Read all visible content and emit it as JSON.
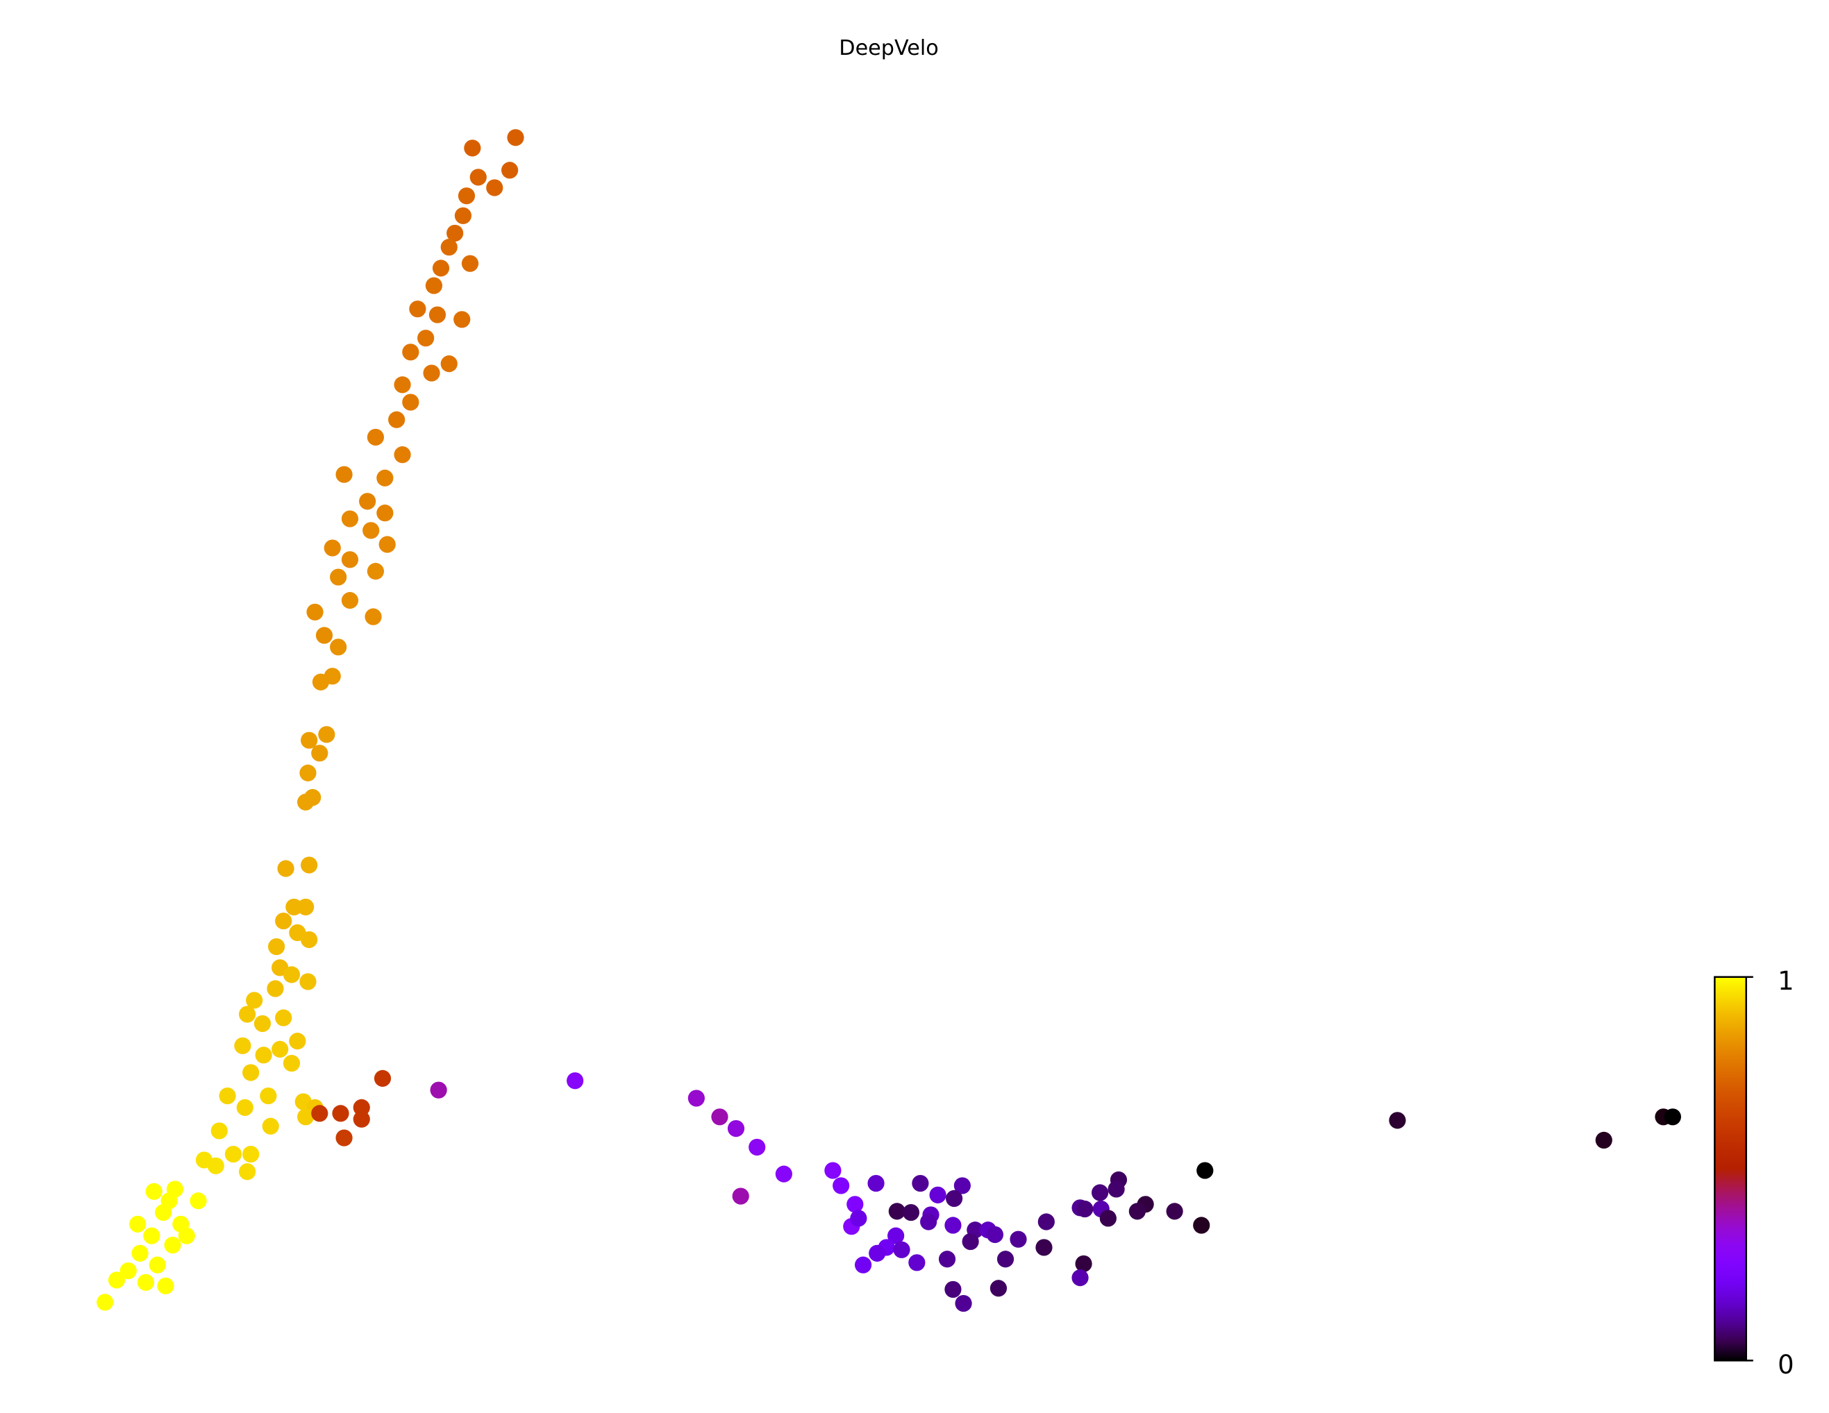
{
  "chart_data": {
    "type": "scatter",
    "title": "DeepVelo",
    "xlabel": "",
    "ylabel": "",
    "xlim": [
      0,
      156.8
    ],
    "ylim": [
      0,
      121.2
    ],
    "grid": false,
    "axes_visible": false,
    "colormap": "gnuplot",
    "colorbar": {
      "min": 0,
      "max": 1,
      "tick_labels": [
        "0",
        "1"
      ],
      "placement": "bottom-right"
    },
    "points": [
      [
        44.2,
        109.4,
        0.72
      ],
      [
        40.5,
        108.5,
        0.72
      ],
      [
        43.7,
        106.6,
        0.72
      ],
      [
        42.4,
        105.1,
        0.73
      ],
      [
        41.0,
        106.0,
        0.73
      ],
      [
        40.0,
        104.4,
        0.74
      ],
      [
        39.7,
        102.7,
        0.74
      ],
      [
        39.0,
        101.2,
        0.74
      ],
      [
        38.5,
        100.0,
        0.75
      ],
      [
        40.3,
        98.6,
        0.75
      ],
      [
        37.8,
        98.2,
        0.75
      ],
      [
        37.2,
        96.7,
        0.76
      ],
      [
        35.8,
        94.7,
        0.76
      ],
      [
        37.5,
        94.2,
        0.76
      ],
      [
        39.6,
        93.8,
        0.76
      ],
      [
        36.5,
        92.2,
        0.77
      ],
      [
        35.2,
        91.0,
        0.77
      ],
      [
        38.5,
        90.0,
        0.77
      ],
      [
        37.0,
        89.2,
        0.77
      ],
      [
        34.5,
        88.2,
        0.78
      ],
      [
        35.2,
        86.7,
        0.78
      ],
      [
        34.0,
        85.2,
        0.78
      ],
      [
        32.2,
        83.7,
        0.79
      ],
      [
        34.5,
        82.2,
        0.79
      ],
      [
        29.5,
        80.5,
        0.8
      ],
      [
        33.0,
        80.2,
        0.8
      ],
      [
        31.5,
        78.2,
        0.8
      ],
      [
        30.0,
        76.7,
        0.81
      ],
      [
        33.0,
        77.2,
        0.8
      ],
      [
        31.8,
        75.7,
        0.81
      ],
      [
        28.5,
        74.2,
        0.81
      ],
      [
        33.2,
        74.5,
        0.81
      ],
      [
        30.0,
        73.2,
        0.81
      ],
      [
        29.0,
        71.7,
        0.82
      ],
      [
        32.2,
        72.2,
        0.82
      ],
      [
        27.0,
        68.7,
        0.82
      ],
      [
        30.0,
        69.7,
        0.82
      ],
      [
        32.0,
        68.3,
        0.82
      ],
      [
        27.8,
        66.7,
        0.82
      ],
      [
        29.0,
        65.7,
        0.83
      ],
      [
        28.5,
        63.2,
        0.84
      ],
      [
        27.5,
        62.7,
        0.84
      ],
      [
        28.0,
        58.2,
        0.85
      ],
      [
        26.5,
        57.7,
        0.85
      ],
      [
        27.4,
        56.6,
        0.85
      ],
      [
        26.4,
        54.9,
        0.86
      ],
      [
        26.8,
        52.8,
        0.86
      ],
      [
        26.2,
        52.4,
        0.86
      ],
      [
        24.5,
        46.7,
        0.88
      ],
      [
        26.5,
        47.0,
        0.88
      ],
      [
        25.2,
        43.4,
        0.89
      ],
      [
        26.2,
        43.4,
        0.89
      ],
      [
        24.3,
        42.2,
        0.89
      ],
      [
        25.5,
        41.2,
        0.9
      ],
      [
        23.7,
        40.0,
        0.9
      ],
      [
        26.5,
        40.6,
        0.9
      ],
      [
        24.0,
        38.2,
        0.9
      ],
      [
        25.0,
        37.6,
        0.91
      ],
      [
        26.4,
        37.0,
        0.91
      ],
      [
        23.6,
        36.4,
        0.91
      ],
      [
        21.8,
        35.4,
        0.92
      ],
      [
        24.3,
        33.9,
        0.92
      ],
      [
        21.2,
        34.2,
        0.92
      ],
      [
        22.5,
        33.4,
        0.92
      ],
      [
        25.5,
        31.9,
        0.92
      ],
      [
        20.8,
        31.5,
        0.93
      ],
      [
        24.0,
        31.2,
        0.93
      ],
      [
        22.6,
        30.7,
        0.93
      ],
      [
        25.0,
        30.0,
        0.93
      ],
      [
        21.5,
        29.2,
        0.93
      ],
      [
        19.5,
        27.2,
        0.94
      ],
      [
        23.0,
        27.2,
        0.94
      ],
      [
        26.0,
        26.7,
        0.93
      ],
      [
        27.0,
        26.2,
        0.92
      ],
      [
        21.0,
        26.2,
        0.94
      ],
      [
        18.8,
        24.2,
        0.95
      ],
      [
        23.2,
        24.6,
        0.94
      ],
      [
        26.2,
        25.4,
        0.93
      ],
      [
        20.0,
        22.2,
        0.95
      ],
      [
        17.5,
        21.7,
        0.96
      ],
      [
        21.5,
        22.2,
        0.95
      ],
      [
        18.5,
        21.2,
        0.96
      ],
      [
        21.2,
        20.7,
        0.95
      ],
      [
        15.0,
        19.2,
        1
      ],
      [
        13.2,
        19.0,
        1
      ],
      [
        17.0,
        18.2,
        1
      ],
      [
        14.0,
        17.2,
        1
      ],
      [
        15.5,
        16.2,
        1
      ],
      [
        13.0,
        15.2,
        1
      ],
      [
        14.8,
        14.4,
        1
      ],
      [
        12.0,
        13.7,
        1
      ],
      [
        13.5,
        12.7,
        1
      ],
      [
        11.0,
        12.2,
        1
      ],
      [
        12.5,
        11.2,
        1
      ],
      [
        10.0,
        11.4,
        1
      ],
      [
        14.2,
        10.9,
        1
      ],
      [
        9.0,
        9.5,
        1
      ],
      [
        16.0,
        15.2,
        1
      ],
      [
        11.8,
        16.2,
        1
      ],
      [
        14.5,
        18.2,
        1
      ],
      [
        32.8,
        28.7,
        0.6
      ],
      [
        29.2,
        25.7,
        0.6
      ],
      [
        31.0,
        26.2,
        0.6
      ],
      [
        31.0,
        25.2,
        0.6
      ],
      [
        29.5,
        23.6,
        0.62
      ],
      [
        27.4,
        25.7,
        0.6
      ],
      [
        37.6,
        27.7,
        0.38
      ],
      [
        49.3,
        28.5,
        0.28
      ],
      [
        59.7,
        27.0,
        0.35
      ],
      [
        61.7,
        25.4,
        0.38
      ],
      [
        63.1,
        24.4,
        0.33
      ],
      [
        64.9,
        22.8,
        0.3
      ],
      [
        67.2,
        20.5,
        0.28
      ],
      [
        63.5,
        18.6,
        0.38
      ],
      [
        71.4,
        20.8,
        0.27
      ],
      [
        72.1,
        19.5,
        0.25
      ],
      [
        73.3,
        17.9,
        0.25
      ],
      [
        73.0,
        16.0,
        0.27
      ],
      [
        73.6,
        16.7,
        0.18
      ],
      [
        75.1,
        19.7,
        0.15
      ],
      [
        78.9,
        19.7,
        0.1
      ],
      [
        82.5,
        19.5,
        0.12
      ],
      [
        80.4,
        18.7,
        0.16
      ],
      [
        81.8,
        18.4,
        0.08
      ],
      [
        76.9,
        17.3,
        0.05
      ],
      [
        78.1,
        17.2,
        0.06
      ],
      [
        79.8,
        17.0,
        0.14
      ],
      [
        79.6,
        16.4,
        0.12
      ],
      [
        81.7,
        16.1,
        0.15
      ],
      [
        83.6,
        15.7,
        0.1
      ],
      [
        84.7,
        15.7,
        0.14
      ],
      [
        85.3,
        15.3,
        0.12
      ],
      [
        87.3,
        14.9,
        0.1
      ],
      [
        83.2,
        14.7,
        0.08
      ],
      [
        76.8,
        15.2,
        0.18
      ],
      [
        76.0,
        14.2,
        0.2
      ],
      [
        75.2,
        13.7,
        0.18
      ],
      [
        77.3,
        14.0,
        0.15
      ],
      [
        74.0,
        12.7,
        0.2
      ],
      [
        78.6,
        12.9,
        0.15
      ],
      [
        81.2,
        13.2,
        0.1
      ],
      [
        86.2,
        13.2,
        0.08
      ],
      [
        89.5,
        14.2,
        0.05
      ],
      [
        89.7,
        16.4,
        0.08
      ],
      [
        92.6,
        17.6,
        0.1
      ],
      [
        93.0,
        17.5,
        0.08
      ],
      [
        94.3,
        18.9,
        0.08
      ],
      [
        95.9,
        20.0,
        0.06
      ],
      [
        95.7,
        19.2,
        0.07
      ],
      [
        94.4,
        17.5,
        0.12
      ],
      [
        95.0,
        16.7,
        0.05
      ],
      [
        98.2,
        17.9,
        0.04
      ],
      [
        97.5,
        17.3,
        0.05
      ],
      [
        100.7,
        17.3,
        0.05
      ],
      [
        103.3,
        20.8,
        0
      ],
      [
        103.0,
        16.1,
        0.02
      ],
      [
        92.9,
        12.8,
        0.04
      ],
      [
        92.6,
        11.6,
        0.12
      ],
      [
        81.7,
        10.6,
        0.08
      ],
      [
        85.6,
        10.7,
        0.06
      ],
      [
        82.6,
        9.4,
        0.1
      ],
      [
        119.8,
        25.1,
        0.03
      ],
      [
        137.5,
        23.4,
        0.02
      ],
      [
        142.6,
        25.4,
        0.01
      ],
      [
        143.4,
        25.4,
        0
      ]
    ]
  }
}
